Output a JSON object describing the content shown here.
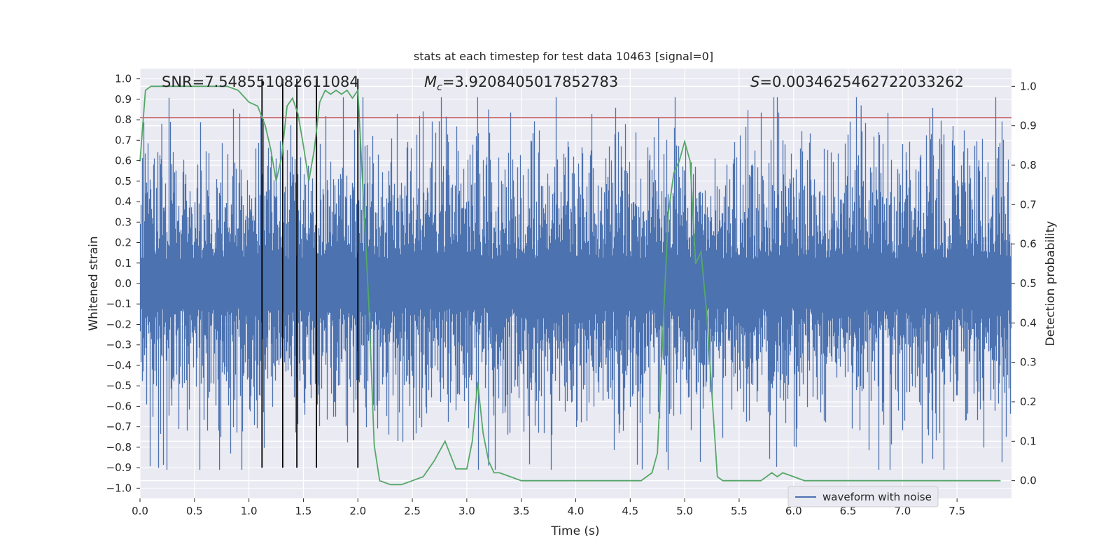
{
  "chart_data": {
    "type": "line",
    "title": "stats at each timestep for test data 10463 [signal=0]",
    "xlabel": "Time (s)",
    "ylabel_left": "Whitened strain",
    "ylabel_right": "Detection probability",
    "xlim": [
      0,
      8
    ],
    "ylim_left": [
      -1.05,
      1.05
    ],
    "ylim_right": [
      -0.045,
      1.045
    ],
    "x_ticks": [
      0.0,
      0.5,
      1.0,
      1.5,
      2.0,
      2.5,
      3.0,
      3.5,
      4.0,
      4.5,
      5.0,
      5.5,
      6.0,
      6.5,
      7.0,
      7.5
    ],
    "x_tick_labels": [
      "0.0",
      "0.5",
      "1.0",
      "1.5",
      "2.0",
      "2.5",
      "3.0",
      "3.5",
      "4.0",
      "4.5",
      "5.0",
      "5.5",
      "6.0",
      "6.5",
      "7.0",
      "7.5"
    ],
    "y_left_ticks": [
      -1.0,
      -0.9,
      -0.8,
      -0.7,
      -0.6,
      -0.5,
      -0.4,
      -0.3,
      -0.2,
      -0.1,
      0.0,
      0.1,
      0.2,
      0.3,
      0.4,
      0.5,
      0.6,
      0.7,
      0.8,
      0.9,
      1.0
    ],
    "y_left_tick_labels": [
      "−1.0",
      "−0.9",
      "−0.8",
      "−0.7",
      "−0.6",
      "−0.5",
      "−0.4",
      "−0.3",
      "−0.2",
      "−0.1",
      "0.0",
      "0.1",
      "0.2",
      "0.3",
      "0.4",
      "0.5",
      "0.6",
      "0.7",
      "0.8",
      "0.9",
      "1.0"
    ],
    "y_right_ticks": [
      0.0,
      0.1,
      0.2,
      0.3,
      0.4,
      0.5,
      0.6,
      0.7,
      0.8,
      0.9,
      1.0
    ],
    "y_right_tick_labels": [
      "0.0",
      "0.1",
      "0.2",
      "0.3",
      "0.4",
      "0.5",
      "0.6",
      "0.7",
      "0.8",
      "0.9",
      "1.0"
    ],
    "annotations": {
      "snr": "SNR=7.548551082611084",
      "mc_symbol": "M",
      "mc_sub": "c",
      "mc_value": "=3.9208405017852783",
      "s_symbol": "S",
      "s_value": "=0.0034625462722033262"
    },
    "series": [
      {
        "name": "waveform with noise",
        "axis": "left",
        "style": "dense noise",
        "sample_rate_hz": 2048,
        "typical_amplitude": 0.25,
        "max_value": 0.91,
        "min_value": -0.91,
        "spikes": [
          {
            "x": 0.73,
            "y": -0.91
          },
          {
            "x": 1.11,
            "y": 0.82
          },
          {
            "x": 3.1,
            "y": 0.91
          },
          {
            "x": 3.2,
            "y": 0.85
          },
          {
            "x": 3.2,
            "y": -0.89
          },
          {
            "x": 6.62,
            "y": 0.87
          },
          {
            "x": 7.18,
            "y": -0.88
          },
          {
            "x": 4.76,
            "y": 0.81
          },
          {
            "x": 7.25,
            "y": 0.81
          },
          {
            "x": 0.2,
            "y": 0.78
          }
        ]
      },
      {
        "name": "detection probability",
        "axis": "right",
        "style": "line",
        "x": [
          0.0,
          0.05,
          0.1,
          0.2,
          0.4,
          0.6,
          0.8,
          0.9,
          1.0,
          1.08,
          1.15,
          1.2,
          1.25,
          1.3,
          1.35,
          1.4,
          1.45,
          1.5,
          1.55,
          1.6,
          1.65,
          1.7,
          1.75,
          1.8,
          1.85,
          1.9,
          1.95,
          2.0,
          2.05,
          2.1,
          2.15,
          2.2,
          2.3,
          2.4,
          2.5,
          2.6,
          2.7,
          2.8,
          2.9,
          3.0,
          3.05,
          3.1,
          3.15,
          3.2,
          3.25,
          3.3,
          3.4,
          3.5,
          3.7,
          4.0,
          4.3,
          4.5,
          4.6,
          4.65,
          4.7,
          4.75,
          4.8,
          4.85,
          4.9,
          4.95,
          5.0,
          5.05,
          5.1,
          5.15,
          5.2,
          5.25,
          5.3,
          5.35,
          5.4,
          5.5,
          5.6,
          5.7,
          5.8,
          5.85,
          5.9,
          6.0,
          6.1,
          6.3,
          6.5,
          6.7,
          7.0,
          7.3,
          7.5,
          7.9
        ],
        "y": [
          0.81,
          0.99,
          1.0,
          1.0,
          1.0,
          1.0,
          1.0,
          0.99,
          0.96,
          0.95,
          0.9,
          0.84,
          0.76,
          0.82,
          0.95,
          0.97,
          0.93,
          0.85,
          0.76,
          0.84,
          0.96,
          0.99,
          0.98,
          0.99,
          0.98,
          0.99,
          0.97,
          0.99,
          0.72,
          0.45,
          0.09,
          0.0,
          -0.01,
          -0.01,
          0.0,
          0.01,
          0.05,
          0.1,
          0.03,
          0.03,
          0.1,
          0.25,
          0.12,
          0.05,
          0.02,
          0.02,
          0.01,
          0.0,
          0.0,
          0.0,
          0.0,
          0.0,
          0.0,
          0.01,
          0.02,
          0.07,
          0.38,
          0.68,
          0.78,
          0.81,
          0.86,
          0.81,
          0.55,
          0.58,
          0.43,
          0.22,
          0.01,
          0.0,
          0.0,
          0.0,
          0.0,
          0.0,
          0.02,
          0.01,
          0.02,
          0.01,
          0.0,
          0.0,
          0.0,
          0.0,
          0.0,
          0.0,
          0.0,
          0.0
        ]
      }
    ],
    "threshold_line": {
      "axis": "left",
      "y": 0.81,
      "color": "#c44e52"
    },
    "vertical_lines_x": [
      1.12,
      1.31,
      1.44,
      1.62,
      2.0
    ],
    "legend": {
      "entries": [
        "waveform with noise"
      ],
      "location": "lower-right"
    },
    "grid": true,
    "colors": {
      "waveform": "#4c72b0",
      "probability": "#55a868",
      "threshold": "#c44e52",
      "vlines": "#000000",
      "background": "#eaeaf2"
    }
  }
}
